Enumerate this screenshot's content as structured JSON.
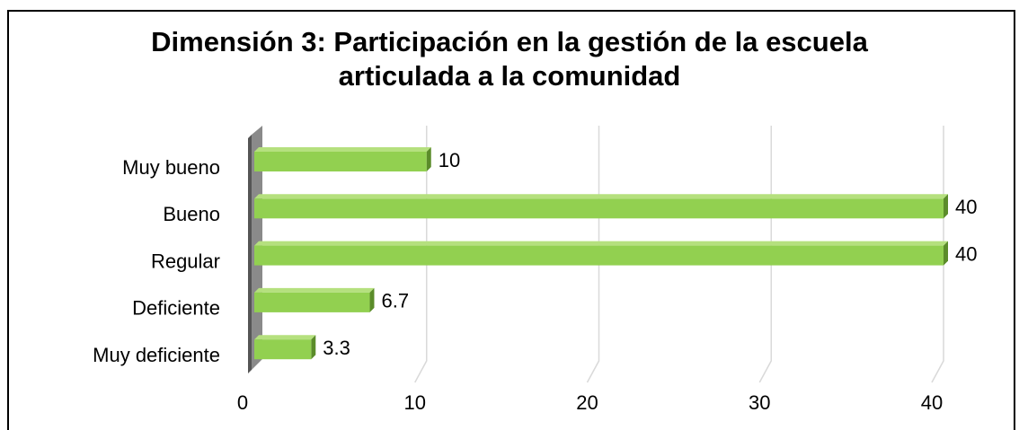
{
  "chart_data": {
    "type": "bar",
    "orientation": "horizontal",
    "title": "Dimensión 3: Participación en la gestión de la escuela articulada a la comunidad",
    "categories": [
      "Muy bueno",
      "Bueno",
      "Regular",
      "Deficiente",
      "Muy deficiente"
    ],
    "values": [
      10,
      40,
      40,
      6.7,
      3.3
    ],
    "color": "#92d050",
    "xlim": [
      0,
      40
    ],
    "xticks": [
      0,
      10,
      20,
      30,
      40
    ],
    "grid": true
  }
}
